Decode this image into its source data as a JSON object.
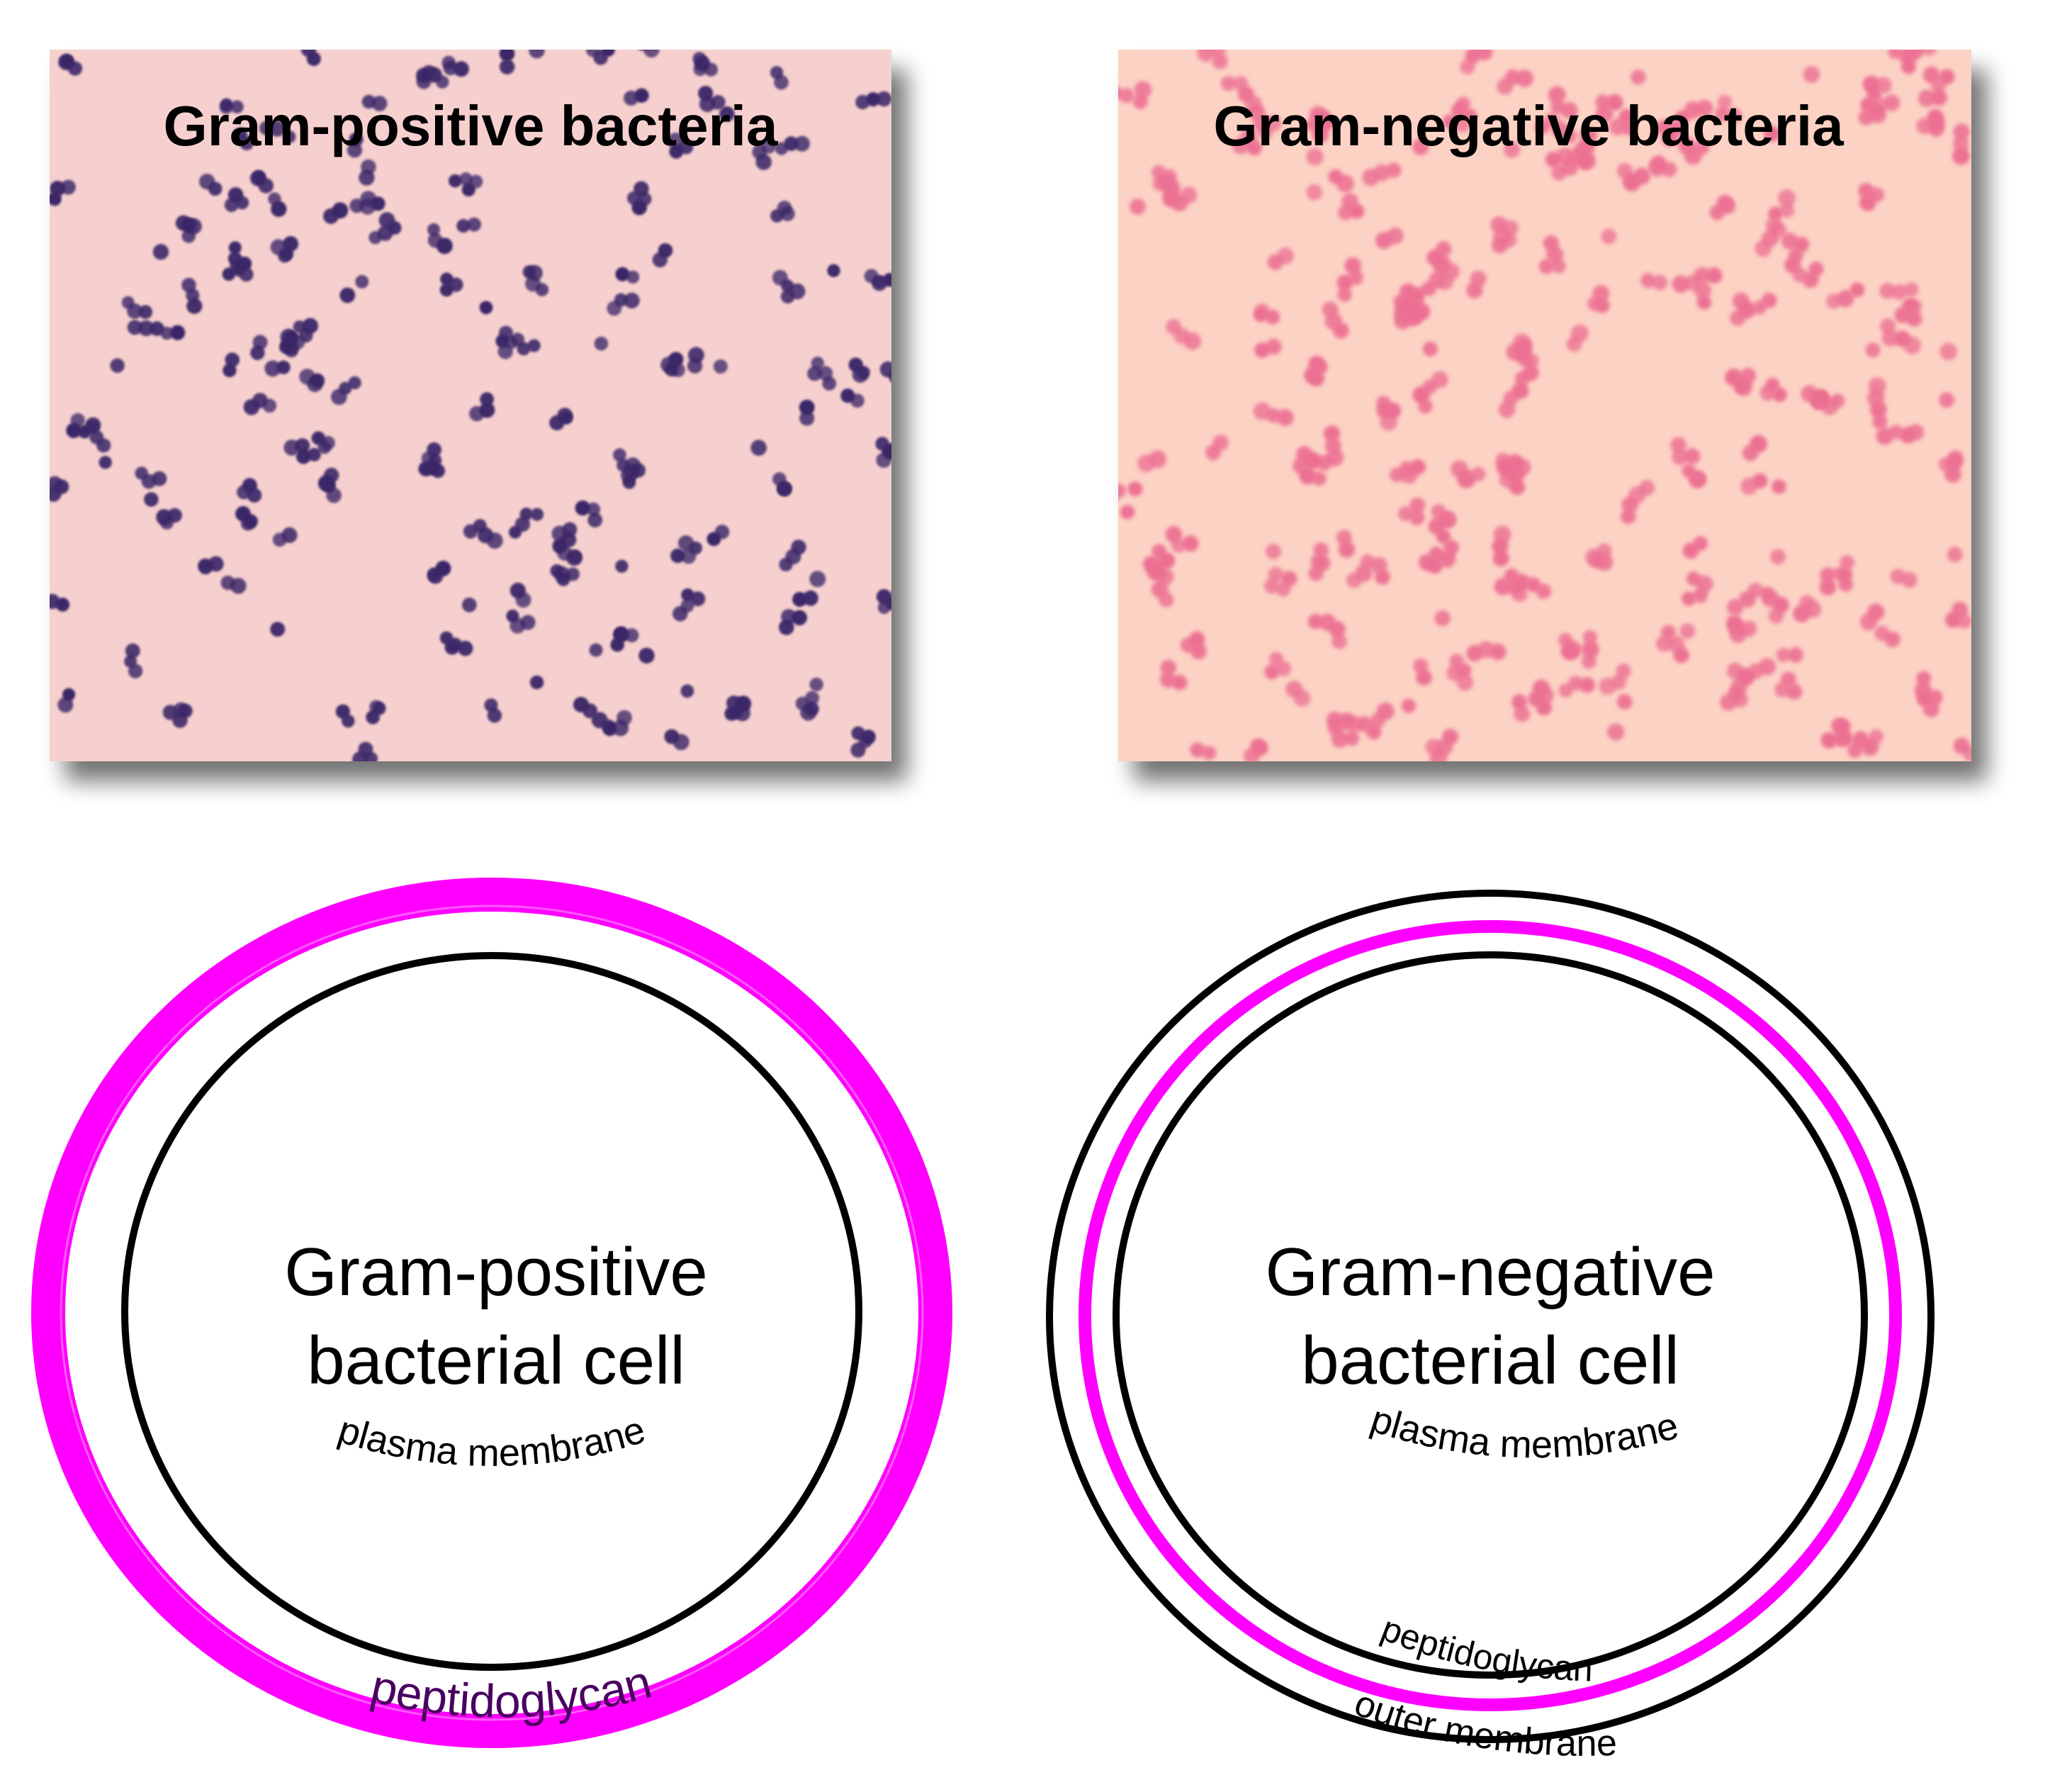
{
  "panels": [
    {
      "id": "gram-positive",
      "micrograph_title": "Gram-positive bacteria",
      "micrograph_colors": {
        "background": "#f6d0ce",
        "cell": "#3a2768"
      },
      "cell_label_line1": "Gram-positive",
      "cell_label_line2": "bacterial cell",
      "layer_labels": {
        "plasma_membrane": "plasma membrane",
        "peptidoglycan": "peptidoglycan"
      },
      "layer_colors": {
        "plasma_membrane": "#000000",
        "peptidoglycan": "#ff00ff"
      }
    },
    {
      "id": "gram-negative",
      "micrograph_title": "Gram-negative bacteria",
      "micrograph_colors": {
        "background": "#fcd2c4",
        "cell": "#ec6f93"
      },
      "cell_label_line1": "Gram-negative",
      "cell_label_line2": "bacterial cell",
      "layer_labels": {
        "plasma_membrane": "plasma membrane",
        "peptidoglycan": "peptidoglycan",
        "outer_membrane": "outer membrane"
      },
      "layer_colors": {
        "plasma_membrane": "#000000",
        "peptidoglycan": "#ff00ff",
        "outer_membrane": "#000000"
      }
    }
  ]
}
